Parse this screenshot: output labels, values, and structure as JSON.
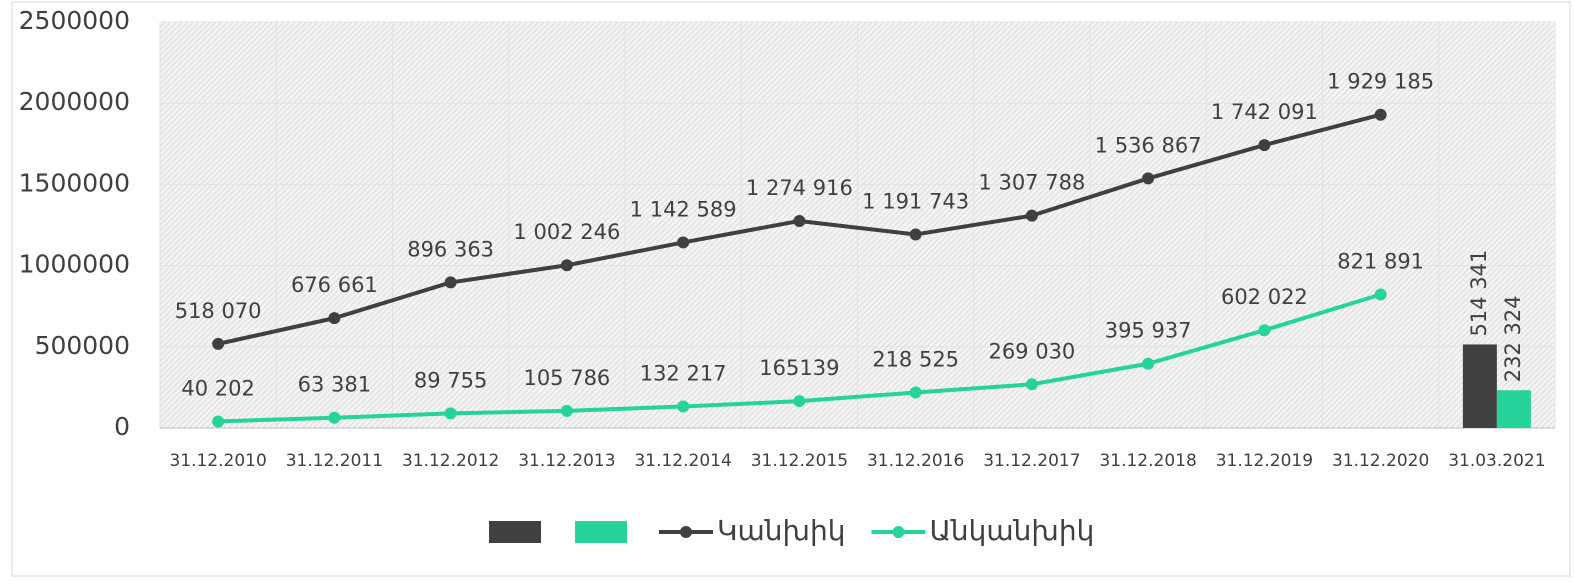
{
  "chart_data": {
    "type": "line",
    "categories": [
      "31.12.2010",
      "31.12.2011",
      "31.12.2012",
      "31.12.2013",
      "31.12.2014",
      "31.12.2015",
      "31.12.2016",
      "31.12.2017",
      "31.12.2018",
      "31.12.2019",
      "31.12.2020",
      "31.03.2021"
    ],
    "series": [
      {
        "type": "bar",
        "color": "#404040",
        "values": [
          null,
          null,
          null,
          null,
          null,
          null,
          null,
          null,
          null,
          null,
          null,
          514341
        ],
        "value_labels": [
          null,
          null,
          null,
          null,
          null,
          null,
          null,
          null,
          null,
          null,
          null,
          "514 341"
        ]
      },
      {
        "type": "bar",
        "color": "#25d39b",
        "values": [
          null,
          null,
          null,
          null,
          null,
          null,
          null,
          null,
          null,
          null,
          null,
          232324
        ],
        "value_labels": [
          null,
          null,
          null,
          null,
          null,
          null,
          null,
          null,
          null,
          null,
          null,
          "232 324"
        ]
      },
      {
        "type": "line",
        "name": "Կանխիկ",
        "color": "#404040",
        "values": [
          518070,
          676661,
          896363,
          1002246,
          1142589,
          1274916,
          1191743,
          1307788,
          1536867,
          1742091,
          1929185,
          null
        ],
        "value_labels": [
          "518 070",
          "676 661",
          "896 363",
          "1 002 246",
          "1 142 589",
          "1 274 916",
          "1 191 743",
          "1 307 788",
          "1 536 867",
          "1 742 091",
          "1 929 185",
          null
        ]
      },
      {
        "type": "line",
        "name": "Անկանխիկ",
        "color": "#25d39b",
        "values": [
          40202,
          63381,
          89755,
          105786,
          132217,
          165139,
          218525,
          269030,
          395937,
          602022,
          821891,
          null
        ],
        "value_labels": [
          "40 202",
          "63 381",
          "89 755",
          "105 786",
          "132 217",
          "165139",
          "218 525",
          "269 030",
          "395 937",
          "602 022",
          "821 891",
          null
        ]
      }
    ],
    "ylim": [
      0,
      2500000
    ],
    "yticks": [
      0,
      500000,
      1000000,
      1500000,
      2000000,
      2500000
    ],
    "grid": true,
    "legend": "bottom"
  }
}
